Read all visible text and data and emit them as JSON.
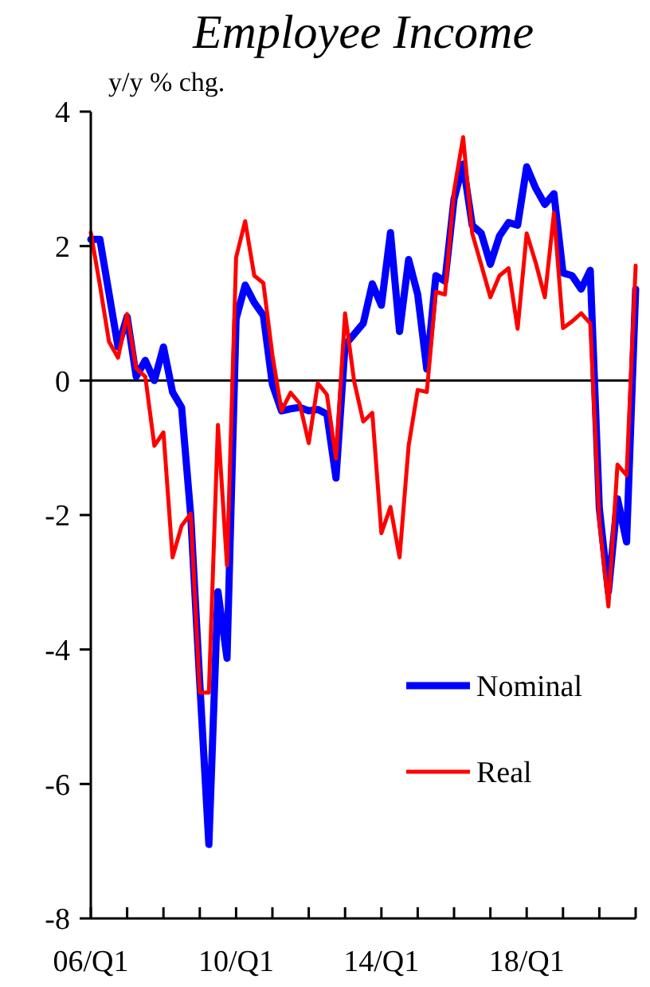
{
  "chart_data": {
    "type": "line",
    "title": "Employee Income",
    "ylabel": "y/y % chg.",
    "categories": [
      "06/Q1",
      null,
      null,
      null,
      null,
      null,
      null,
      null,
      null,
      null,
      null,
      null,
      null,
      null,
      null,
      null,
      "10/Q1",
      null,
      null,
      null,
      null,
      null,
      null,
      null,
      null,
      null,
      null,
      null,
      null,
      null,
      null,
      null,
      "14/Q1",
      null,
      null,
      null,
      null,
      null,
      null,
      null,
      null,
      null,
      null,
      null,
      null,
      null,
      null,
      null,
      "18/Q1",
      null,
      null,
      null,
      null,
      null,
      null,
      null,
      null,
      null,
      null,
      null,
      null
    ],
    "series": [
      {
        "name": "Nominal",
        "color": "#0000ff",
        "values": [
          2.1,
          2.1,
          1.3,
          0.5,
          0.95,
          0.06,
          0.3,
          0,
          0.5,
          -0.17,
          -0.4,
          -2.0,
          -4.5,
          -6.9,
          -3.14,
          -4.13,
          0.92,
          1.42,
          1.16,
          0.97,
          -0.06,
          -0.45,
          -0.42,
          -0.4,
          -0.45,
          -0.43,
          -0.5,
          -1.45,
          0.53,
          0.69,
          0.85,
          1.44,
          1.12,
          2.2,
          0.73,
          1.8,
          1.28,
          0.17,
          1.56,
          1.48,
          2.7,
          3.22,
          2.31,
          2.19,
          1.73,
          2.15,
          2.35,
          2.31,
          3.18,
          2.86,
          2.62,
          2.78,
          1.6,
          1.56,
          1.36,
          1.64,
          -1.9,
          -3.14,
          -1.76,
          -2.4,
          1.36
        ]
      },
      {
        "name": "Real",
        "color": "#ff0000",
        "values": [
          2.2,
          1.42,
          0.58,
          0.34,
          0.99,
          0.18,
          0.06,
          -0.97,
          -0.77,
          -2.63,
          -2.16,
          -1.98,
          -4.64,
          -4.64,
          -0.66,
          -2.75,
          1.83,
          2.37,
          1.56,
          1.45,
          0.38,
          -0.45,
          -0.18,
          -0.34,
          -0.93,
          -0.04,
          -0.21,
          -1.16,
          1.0,
          -0.01,
          -0.61,
          -0.48,
          -2.27,
          -1.88,
          -2.63,
          -0.97,
          -0.14,
          -0.17,
          1.32,
          1.28,
          2.82,
          3.62,
          2.19,
          1.72,
          1.24,
          1.56,
          1.67,
          0.77,
          2.19,
          1.75,
          1.24,
          2.49,
          0.78,
          0.88,
          1.0,
          0.85,
          -2.1,
          -3.36,
          -1.25,
          -1.41,
          1.71
        ]
      }
    ],
    "ylim": [
      -8,
      4
    ],
    "yticks": [
      -8,
      -6,
      -4,
      -2,
      0,
      2,
      4
    ],
    "ref_lines": [
      {
        "axis": "y",
        "value": 0,
        "color": "#000000"
      }
    ],
    "legend": "bottom right",
    "grid": false,
    "marker": "none",
    "line_style": "solid"
  }
}
